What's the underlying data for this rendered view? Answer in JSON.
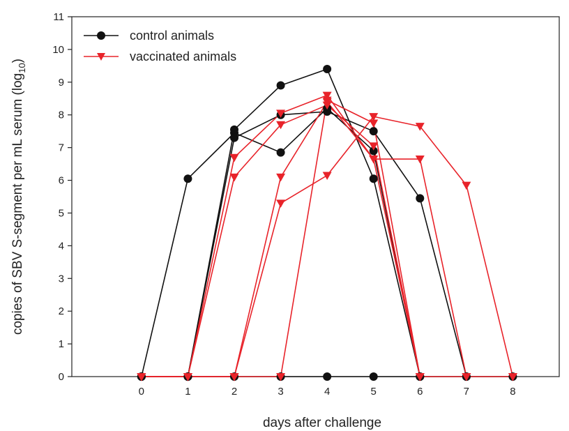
{
  "chart_data": {
    "type": "line",
    "xlabel": "days after challenge",
    "ylabel_main": "copies of SBV S-segment per mL serum (log",
    "ylabel_sub": "10",
    "ylabel_close": ")",
    "xlim": [
      -1.5,
      9
    ],
    "ylim": [
      0,
      11
    ],
    "xticks": [
      0,
      1,
      2,
      3,
      4,
      5,
      6,
      7,
      8
    ],
    "yticks": [
      0,
      1,
      2,
      3,
      4,
      5,
      6,
      7,
      8,
      9,
      10,
      11
    ],
    "legend_position": "top-left",
    "series": [
      {
        "group": "control",
        "color": "#111111",
        "marker": "circle",
        "x": [
          0,
          1,
          2,
          3,
          4,
          5,
          6
        ],
        "y": [
          0,
          6.05,
          7.45,
          6.85,
          8.2,
          6.9,
          0
        ]
      },
      {
        "group": "control",
        "color": "#111111",
        "marker": "circle",
        "x": [
          0,
          1,
          2,
          3,
          4,
          5,
          6,
          7
        ],
        "y": [
          0,
          0,
          7.3,
          8.0,
          8.1,
          7.5,
          5.45,
          0
        ]
      },
      {
        "group": "control",
        "color": "#111111",
        "marker": "circle",
        "x": [
          0,
          1,
          2,
          3,
          4,
          5,
          6
        ],
        "y": [
          0,
          0,
          7.55,
          8.9,
          9.4,
          6.05,
          0
        ]
      },
      {
        "group": "control",
        "color": "#111111",
        "marker": "circle",
        "x": [
          0,
          1,
          2,
          3,
          4,
          5,
          6,
          7,
          8
        ],
        "y": [
          0,
          0,
          0,
          0,
          0,
          0,
          0,
          0,
          0
        ]
      },
      {
        "group": "vaccinated",
        "color": "#e8232a",
        "marker": "triangle-down",
        "x": [
          0,
          1,
          2,
          3,
          4,
          5,
          6
        ],
        "y": [
          0,
          0,
          6.7,
          8.05,
          8.6,
          6.65,
          0
        ]
      },
      {
        "group": "vaccinated",
        "color": "#e8232a",
        "marker": "triangle-down",
        "x": [
          0,
          1,
          2,
          3,
          4,
          5,
          6
        ],
        "y": [
          0,
          0,
          6.1,
          7.7,
          8.3,
          7.05,
          0
        ]
      },
      {
        "group": "vaccinated",
        "color": "#e8232a",
        "marker": "triangle-down",
        "x": [
          0,
          1,
          2,
          3,
          4,
          5,
          6,
          7,
          8
        ],
        "y": [
          0,
          0,
          0,
          5.3,
          6.15,
          7.95,
          7.65,
          5.85,
          0
        ]
      },
      {
        "group": "vaccinated",
        "color": "#e8232a",
        "marker": "triangle-down",
        "x": [
          0,
          1,
          2,
          3,
          4,
          5,
          6,
          7
        ],
        "y": [
          0,
          0,
          0,
          6.1,
          8.4,
          6.65,
          6.65,
          0
        ]
      },
      {
        "group": "vaccinated",
        "color": "#e8232a",
        "marker": "triangle-down",
        "x": [
          0,
          1,
          2,
          3,
          4,
          5,
          6,
          7,
          8
        ],
        "y": [
          0,
          0,
          0,
          0,
          8.45,
          7.75,
          0,
          0,
          0
        ]
      }
    ],
    "legend": [
      {
        "label": "control animals",
        "color": "#111111",
        "marker": "circle"
      },
      {
        "label": "vaccinated animals",
        "color": "#e8232a",
        "marker": "triangle-down"
      }
    ]
  }
}
